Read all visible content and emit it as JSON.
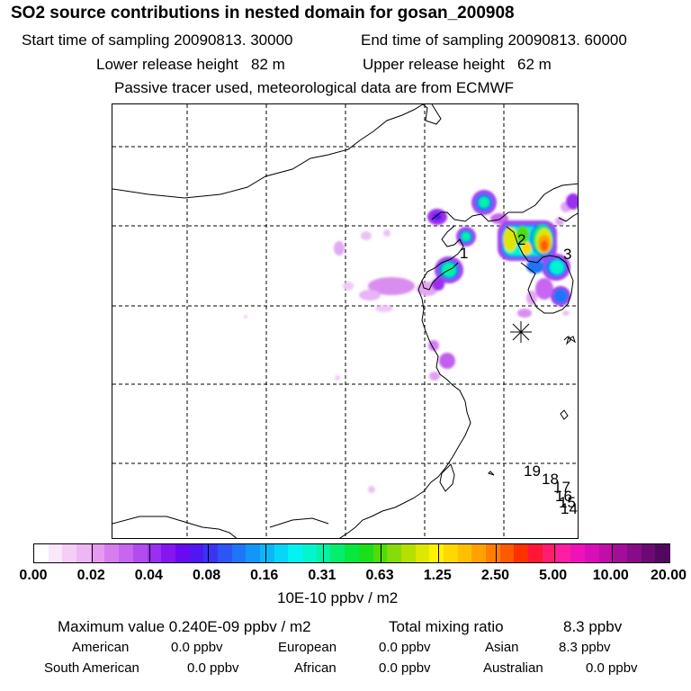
{
  "header": {
    "title": "SO2 source contributions in nested domain for gosan_200908",
    "start_label": "Start time of sampling 20090813. 30000",
    "end_label": "End time of sampling 20090813. 60000",
    "lower_label": "Lower release height   82 m",
    "upper_label": "Upper release height   62 m",
    "tracer_note": "Passive tracer used, meteorological data are from ECMWF"
  },
  "map": {
    "station_marker": "asterisk-marker",
    "source_labels": [
      "1",
      "2",
      "3"
    ],
    "track_labels": [
      "19",
      "18",
      "17",
      "16",
      "15",
      "14"
    ]
  },
  "colorbar": {
    "ticks": [
      "0.00",
      "0.02",
      "0.04",
      "0.08",
      "0.16",
      "0.31",
      "0.63",
      "1.25",
      "2.50",
      "5.00",
      "10.00",
      "20.00"
    ],
    "units": "10E-10 ppbv / m2",
    "colors": [
      "#ffffff",
      "#fbe6fb",
      "#f5cdf7",
      "#eeb6f4",
      "#e59cf0",
      "#d77eef",
      "#c766ee",
      "#b24cee",
      "#9b2ff0",
      "#8516f0",
      "#6a0af2",
      "#4f18f3",
      "#3a33f4",
      "#2b55f6",
      "#1e76f7",
      "#1297f8",
      "#0cb6f8",
      "#08d6f8",
      "#03f3f5",
      "#03f5d0",
      "#03f3a2",
      "#03ee6e",
      "#07e73e",
      "#19e01a",
      "#4fdc0a",
      "#86dc08",
      "#b5e000",
      "#dfe700",
      "#fff200",
      "#ffd800",
      "#ffbf00",
      "#ffa100",
      "#ff7e00",
      "#ff5a00",
      "#ff3100",
      "#ff1735",
      "#ff1e6d",
      "#ff1da3",
      "#ef12b8",
      "#d80fb8",
      "#c00eaa",
      "#a40d99",
      "#880b88",
      "#6c0a74",
      "#52085e"
    ]
  },
  "summary": {
    "max_label": "Maximum value  0.240E-09 ppbv / m2",
    "total_label": "Total mixing ratio",
    "total_value": "8.3 ppbv",
    "regions": [
      {
        "name": "American",
        "value": "0.0 ppbv"
      },
      {
        "name": "European",
        "value": "0.0 ppbv"
      },
      {
        "name": "Asian",
        "value": "8.3 ppbv"
      },
      {
        "name": "South American",
        "value": "0.0 ppbv"
      },
      {
        "name": "African",
        "value": "0.0 ppbv"
      },
      {
        "name": "Australian",
        "value": "0.0 ppbv"
      }
    ]
  }
}
